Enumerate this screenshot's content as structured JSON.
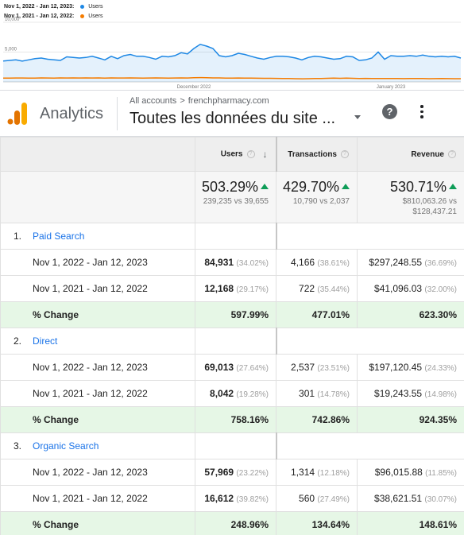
{
  "chart_data": {
    "type": "line",
    "legend": [
      {
        "label": "Nov 1, 2022 - Jan 12, 2023:",
        "series": "Users",
        "color": "#1e88e5"
      },
      {
        "label": "Nov 1, 2021 - Jan 12, 2022:",
        "series": "Users",
        "color": "#f57c00"
      }
    ],
    "yticks": [
      "10,000",
      "5,000"
    ],
    "ylim": [
      0,
      10000
    ],
    "xticks": [
      {
        "label": "December 2022",
        "index": 30
      },
      {
        "label": "January 2023",
        "index": 61
      }
    ],
    "series": [
      {
        "name": "Users",
        "color": "#1e88e5",
        "fill": true,
        "values": [
          3500,
          3600,
          3700,
          3500,
          3700,
          3900,
          4000,
          3800,
          3700,
          3600,
          4200,
          4100,
          4000,
          4100,
          4300,
          4000,
          3700,
          4300,
          3900,
          4400,
          4600,
          4300,
          4300,
          4100,
          3800,
          4300,
          4200,
          4400,
          4900,
          4700,
          5600,
          6300,
          6000,
          5600,
          4400,
          4200,
          4400,
          4800,
          4600,
          4300,
          4000,
          3800,
          4100,
          4300,
          4300,
          4200,
          4000,
          3700,
          4100,
          4300,
          4200,
          4000,
          3800,
          3900,
          4300,
          4200,
          3600,
          3700,
          4000,
          5000,
          3800,
          4400,
          4300,
          4300,
          4400,
          4300,
          4500,
          4300,
          4200,
          4300,
          4200,
          4300,
          4000
        ]
      },
      {
        "name": "Users",
        "color": "#f57c00",
        "fill": false,
        "values": [
          620,
          640,
          650,
          650,
          630,
          640,
          660,
          650,
          640,
          660,
          650,
          670,
          650,
          660,
          650,
          660,
          640,
          660,
          650,
          650,
          670,
          650,
          640,
          650,
          660,
          650,
          640,
          650,
          660,
          650,
          700,
          720,
          700,
          670,
          660,
          640,
          640,
          650,
          630,
          620,
          610,
          600,
          600,
          590,
          580,
          560,
          540,
          520,
          540,
          560,
          580,
          600,
          620,
          600,
          620,
          600,
          580,
          590,
          580,
          560,
          570,
          560,
          560,
          550,
          560,
          560,
          560,
          540,
          550,
          560,
          550,
          540,
          530
        ]
      }
    ]
  },
  "header": {
    "product": "Analytics",
    "breadcrumb_root": "All accounts",
    "breadcrumb_chevron": ">",
    "breadcrumb_property": "frenchpharmacy.com",
    "view_name": "Toutes les données du site ...",
    "help_label": "?"
  },
  "columns": {
    "users": "Users",
    "transactions": "Transactions",
    "revenue": "Revenue",
    "help": "?",
    "sort": "↓"
  },
  "summary": {
    "users": {
      "pct": "503.29%",
      "sub": "239,235 vs 39,655"
    },
    "transactions": {
      "pct": "429.70%",
      "sub": "10,790 vs 2,037"
    },
    "revenue": {
      "pct": "530.71%",
      "sub1": "$810,063.26 vs",
      "sub2": "$128,437.21"
    }
  },
  "groups": [
    {
      "num": "1.",
      "name": "Paid Search",
      "rows": [
        {
          "label": "Nov 1, 2022 - Jan 12, 2023",
          "users": "84,931",
          "users_pct": "(34.02%)",
          "tx": "4,166",
          "tx_pct": "(38.61%)",
          "rev": "$297,248.55",
          "rev_pct": "(36.69%)"
        },
        {
          "label": "Nov 1, 2021 - Jan 12, 2022",
          "users": "12,168",
          "users_pct": "(29.17%)",
          "tx": "722",
          "tx_pct": "(35.44%)",
          "rev": "$41,096.03",
          "rev_pct": "(32.00%)"
        }
      ],
      "change": {
        "label": "% Change",
        "users": "597.99%",
        "tx": "477.01%",
        "rev": "623.30%"
      }
    },
    {
      "num": "2.",
      "name": "Direct",
      "rows": [
        {
          "label": "Nov 1, 2022 - Jan 12, 2023",
          "users": "69,013",
          "users_pct": "(27.64%)",
          "tx": "2,537",
          "tx_pct": "(23.51%)",
          "rev": "$197,120.45",
          "rev_pct": "(24.33%)"
        },
        {
          "label": "Nov 1, 2021 - Jan 12, 2022",
          "users": "8,042",
          "users_pct": "(19.28%)",
          "tx": "301",
          "tx_pct": "(14.78%)",
          "rev": "$19,243.55",
          "rev_pct": "(14.98%)"
        }
      ],
      "change": {
        "label": "% Change",
        "users": "758.16%",
        "tx": "742.86%",
        "rev": "924.35%"
      }
    },
    {
      "num": "3.",
      "name": "Organic Search",
      "rows": [
        {
          "label": "Nov 1, 2022 - Jan 12, 2023",
          "users": "57,969",
          "users_pct": "(23.22%)",
          "tx": "1,314",
          "tx_pct": "(12.18%)",
          "rev": "$96,015.88",
          "rev_pct": "(11.85%)"
        },
        {
          "label": "Nov 1, 2021 - Jan 12, 2022",
          "users": "16,612",
          "users_pct": "(39.82%)",
          "tx": "560",
          "tx_pct": "(27.49%)",
          "rev": "$38,621.51",
          "rev_pct": "(30.07%)"
        }
      ],
      "change": {
        "label": "% Change",
        "users": "248.96%",
        "tx": "134.64%",
        "rev": "148.61%"
      }
    }
  ]
}
